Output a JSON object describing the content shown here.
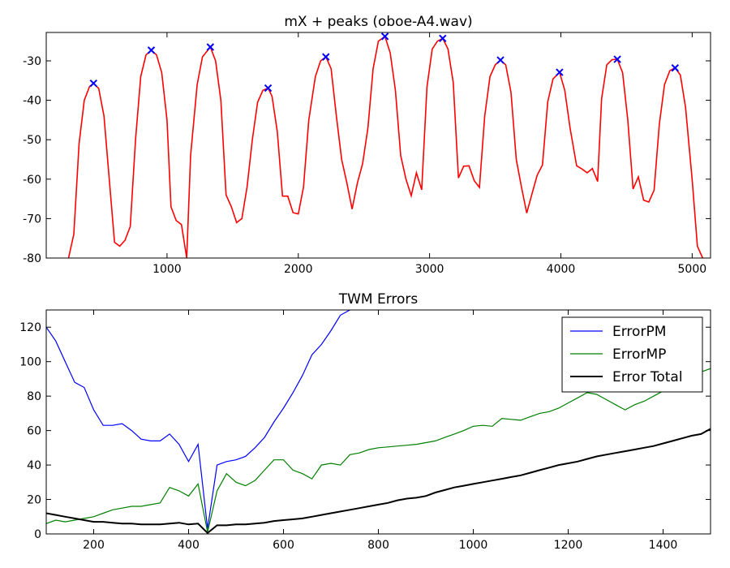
{
  "chart_data": [
    {
      "type": "line",
      "title": "mX + peaks (oboe-A4.wav)",
      "color": "#ff0000",
      "x": [
        250,
        290,
        330,
        370,
        410,
        440,
        480,
        520,
        560,
        600,
        640,
        680,
        720,
        760,
        800,
        840,
        880,
        920,
        960,
        1000,
        1030,
        1070,
        1110,
        1150,
        1180,
        1230,
        1270,
        1330,
        1370,
        1410,
        1450,
        1490,
        1530,
        1570,
        1610,
        1650,
        1690,
        1730,
        1770,
        1800,
        1840,
        1880,
        1920,
        1960,
        2000,
        2040,
        2080,
        2130,
        2170,
        2210,
        2250,
        2290,
        2330,
        2370,
        2410,
        2450,
        2490,
        2530,
        2570,
        2610,
        2660,
        2700,
        2740,
        2780,
        2820,
        2860,
        2900,
        2940,
        2980,
        3020,
        3060,
        3100,
        3140,
        3180,
        3220,
        3260,
        3300,
        3340,
        3380,
        3420,
        3460,
        3500,
        3540,
        3580,
        3620,
        3660,
        3700,
        3740,
        3780,
        3820,
        3860,
        3900,
        3940,
        3990,
        4030,
        4070,
        4120,
        4160,
        4200,
        4240,
        4280,
        4310,
        4350,
        4390,
        4430,
        4470,
        4510,
        4550,
        4590,
        4630,
        4670,
        4710,
        4750,
        4790,
        4830,
        4870,
        4910,
        4950,
        5000,
        5040,
        5080
      ],
      "values": [
        -80,
        -74,
        -51,
        -40,
        -36.5,
        -35.7,
        -37,
        -44,
        -60,
        -76,
        -77,
        -75.5,
        -72,
        -50,
        -34,
        -28.5,
        -27.3,
        -28.5,
        -33,
        -45,
        -67,
        -70.5,
        -71.5,
        -80,
        -54,
        -36,
        -29,
        -26.5,
        -30,
        -40,
        -64,
        -67,
        -71,
        -70,
        -62,
        -50,
        -40.5,
        -37.5,
        -36.9,
        -39,
        -48,
        -64.3,
        -64.3,
        -68.5,
        -68.8,
        -62,
        -45,
        -34,
        -30,
        -29,
        -32,
        -44,
        -55,
        -61,
        -67.6,
        -61,
        -56,
        -47,
        -32,
        -25,
        -23.8,
        -28,
        -37.5,
        -54,
        -60,
        -64.2,
        -58.4,
        -62.7,
        -36.6,
        -27,
        -25,
        -24.3,
        -27,
        -35.5,
        -59.7,
        -56.7,
        -56.6,
        -60.4,
        -62.1,
        -44,
        -34,
        -31,
        -29.8,
        -31,
        -38,
        -55,
        -62,
        -68.6,
        -63.7,
        -59,
        -56.4,
        -40.4,
        -34.6,
        -32.9,
        -37.5,
        -47,
        -56.6,
        -57.4,
        -58.4,
        -57.3,
        -60.6,
        -39.6,
        -31,
        -29.7,
        -29.6,
        -33,
        -45,
        -62.5,
        -59.4,
        -65.3,
        -65.8,
        -62.8,
        -46,
        -36,
        -32.5,
        -31.8,
        -33.6,
        -41.8,
        -60,
        -77,
        -80
      ],
      "peaks": {
        "color": "#0000ff",
        "x": [
          440,
          880,
          1330,
          1770,
          2210,
          2660,
          3100,
          3540,
          3990,
          4430,
          4870
        ],
        "values": [
          -35.7,
          -27.3,
          -26.5,
          -36.9,
          -29,
          -23.8,
          -24.3,
          -29.8,
          -32.9,
          -29.6,
          -31.8
        ]
      },
      "xlim": [
        80,
        5140
      ],
      "xticks": [
        1000,
        2000,
        3000,
        4000,
        5000
      ],
      "ylim": [
        -80,
        -22.8
      ],
      "yticks": [
        -80,
        -70,
        -60,
        -50,
        -40,
        -30
      ]
    },
    {
      "type": "line",
      "title": "TWM Errors",
      "legend": "upper right",
      "x": [
        100,
        120,
        140,
        160,
        180,
        200,
        220,
        240,
        260,
        280,
        300,
        320,
        340,
        360,
        380,
        400,
        420,
        440,
        460,
        480,
        500,
        520,
        540,
        560,
        580,
        600,
        620,
        640,
        660,
        680,
        700,
        720,
        740,
        760,
        780,
        800,
        820,
        840,
        860,
        880,
        900,
        920,
        940,
        960,
        980,
        1000,
        1020,
        1040,
        1060,
        1080,
        1100,
        1120,
        1140,
        1160,
        1180,
        1200,
        1220,
        1240,
        1260,
        1280,
        1300,
        1320,
        1340,
        1360,
        1380,
        1400,
        1420,
        1440,
        1460,
        1480,
        1500
      ],
      "series": [
        {
          "name": "ErrorPM",
          "color": "#0000ff",
          "width": 1.2,
          "values": [
            120,
            112,
            100,
            88,
            85,
            72,
            63,
            63,
            64,
            60,
            55,
            54,
            54,
            58,
            52,
            42,
            52,
            3,
            40,
            42,
            43,
            45,
            50,
            56,
            65,
            73,
            82,
            92,
            104,
            110,
            118,
            127,
            130,
            null,
            null,
            null,
            null,
            null,
            null,
            null,
            null,
            null,
            null,
            null,
            null,
            null,
            null,
            null,
            null,
            null,
            null,
            null,
            null,
            null,
            null,
            null,
            null,
            null,
            null,
            null,
            null,
            null,
            null,
            null,
            null,
            null,
            null,
            null,
            null,
            null,
            null
          ]
        },
        {
          "name": "ErrorMP",
          "color": "#008000",
          "width": 1.2,
          "values": [
            6,
            8,
            7,
            8,
            9,
            10,
            12,
            14,
            15,
            16,
            16,
            17,
            18,
            27,
            25,
            22,
            29,
            1,
            25,
            35,
            30,
            28,
            31,
            37,
            43,
            43,
            37,
            35,
            32,
            40,
            41,
            40,
            46,
            47,
            49,
            50,
            50.5,
            51,
            51.5,
            52,
            53,
            54,
            56,
            58,
            60,
            62.5,
            63,
            62.5,
            67,
            66.5,
            66,
            68,
            70,
            71,
            73,
            76,
            79,
            82,
            81,
            78,
            75,
            72,
            75,
            77,
            80,
            83,
            86,
            88,
            91,
            94,
            96
          ]
        },
        {
          "name": "Error Total",
          "color": "#000000",
          "width": 2,
          "values": [
            12,
            11,
            10,
            9,
            8,
            7,
            7,
            6.5,
            6,
            6,
            5.5,
            5.5,
            5.5,
            6,
            6.5,
            5.5,
            6,
            0.5,
            5,
            5,
            5.5,
            5.5,
            6,
            6.5,
            7.5,
            8,
            8.5,
            9,
            10,
            11,
            12,
            13,
            14,
            15,
            16,
            17,
            18,
            19.5,
            20.5,
            21,
            22,
            24,
            25.5,
            27,
            28,
            29,
            30,
            31,
            32,
            33,
            34,
            35.5,
            37,
            38.5,
            40,
            41,
            42,
            43.5,
            45,
            46,
            47,
            48,
            49,
            50,
            51,
            52.5,
            54,
            55.5,
            57,
            58,
            61
          ]
        }
      ],
      "xlim": [
        100,
        1500
      ],
      "xticks": [
        200,
        400,
        600,
        800,
        1000,
        1200,
        1400
      ],
      "ylim": [
        0,
        130
      ],
      "yticks": [
        0,
        20,
        40,
        60,
        80,
        100,
        120
      ]
    }
  ]
}
